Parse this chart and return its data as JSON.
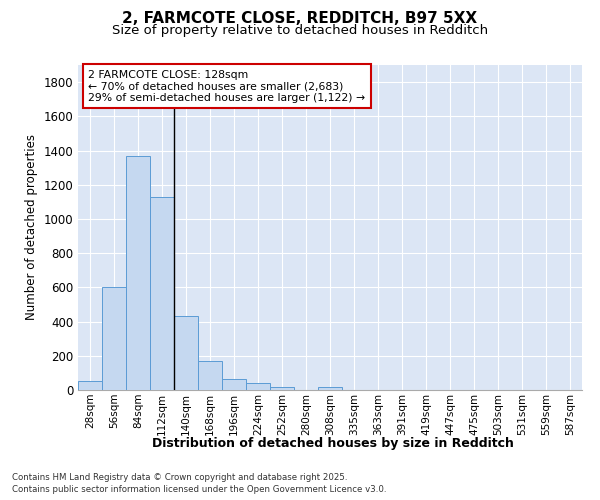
{
  "title_line1": "2, FARMCOTE CLOSE, REDDITCH, B97 5XX",
  "title_line2": "Size of property relative to detached houses in Redditch",
  "xlabel": "Distribution of detached houses by size in Redditch",
  "ylabel": "Number of detached properties",
  "categories": [
    "28sqm",
    "56sqm",
    "84sqm",
    "112sqm",
    "140sqm",
    "168sqm",
    "196sqm",
    "224sqm",
    "252sqm",
    "280sqm",
    "308sqm",
    "335sqm",
    "363sqm",
    "391sqm",
    "419sqm",
    "447sqm",
    "475sqm",
    "503sqm",
    "531sqm",
    "559sqm",
    "587sqm"
  ],
  "values": [
    50,
    600,
    1370,
    1130,
    430,
    170,
    65,
    40,
    15,
    0,
    15,
    0,
    0,
    0,
    0,
    0,
    0,
    0,
    0,
    0,
    0
  ],
  "bar_color": "#c5d8f0",
  "bar_edge_color": "#5b9bd5",
  "bg_color": "#dce6f5",
  "grid_color": "#ffffff",
  "annotation_box_color": "#cc0000",
  "annotation_text_line1": "2 FARMCOTE CLOSE: 128sqm",
  "annotation_text_line2": "← 70% of detached houses are smaller (2,683)",
  "annotation_text_line3": "29% of semi-detached houses are larger (1,122) →",
  "ylim": [
    0,
    1900
  ],
  "yticks": [
    0,
    200,
    400,
    600,
    800,
    1000,
    1200,
    1400,
    1600,
    1800
  ],
  "footer_line1": "Contains HM Land Registry data © Crown copyright and database right 2025.",
  "footer_line2": "Contains public sector information licensed under the Open Government Licence v3.0."
}
